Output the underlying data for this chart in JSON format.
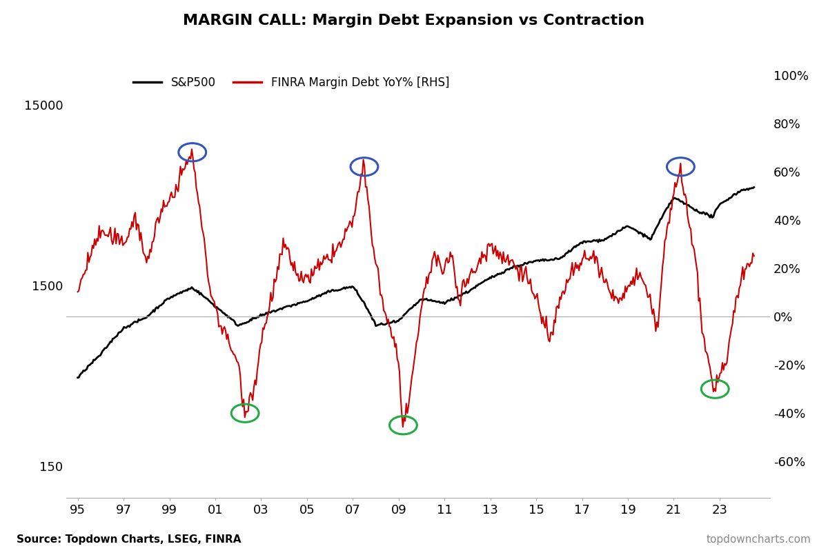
{
  "title": "MARGIN CALL: Margin Debt Expansion vs Contraction",
  "source_left": "Source: Topdown Charts, LSEG, FINRA",
  "source_right": "topdowncharts.com",
  "legend": [
    "S&P500",
    "FINRA Margin Debt YoY% [RHS]"
  ],
  "sp500_color": "#000000",
  "margin_color": "#cc0000",
  "background_color": "#ffffff",
  "left_yticks": [
    150,
    1500,
    15000
  ],
  "right_yticks": [
    -0.6,
    -0.4,
    -0.2,
    0.0,
    0.2,
    0.4,
    0.6,
    0.8,
    1.0
  ],
  "xtick_labels": [
    "95",
    "97",
    "99",
    "01",
    "03",
    "05",
    "07",
    "09",
    "11",
    "13",
    "15",
    "17",
    "19",
    "21",
    "23"
  ],
  "zero_line_color": "#aaaaaa",
  "sp500_key_x": [
    1995.0,
    1996.0,
    1997.0,
    1998.0,
    1999.0,
    2000.0,
    2001.0,
    2002.0,
    2003.0,
    2004.0,
    2005.0,
    2006.0,
    2007.0,
    2008.0,
    2009.0,
    2010.0,
    2011.0,
    2012.0,
    2013.0,
    2014.0,
    2015.0,
    2016.0,
    2017.0,
    2018.0,
    2019.0,
    2020.0,
    2020.4,
    2021.0,
    2022.0,
    2022.7,
    2023.0,
    2024.0,
    2024.5
  ],
  "sp500_key_y": [
    460,
    620,
    870,
    1000,
    1280,
    1460,
    1150,
    900,
    1020,
    1130,
    1230,
    1390,
    1480,
    900,
    950,
    1260,
    1200,
    1380,
    1650,
    1900,
    2050,
    2100,
    2600,
    2700,
    3200,
    2700,
    3400,
    4600,
    3900,
    3600,
    4200,
    5100,
    5200
  ],
  "margin_key_x": [
    1995.0,
    1995.5,
    1996.0,
    1997.0,
    1997.5,
    1998.0,
    1998.5,
    1999.0,
    1999.5,
    2000.0,
    2000.3,
    2000.8,
    2001.3,
    2001.8,
    2002.0,
    2002.3,
    2002.8,
    2003.0,
    2003.5,
    2004.0,
    2004.5,
    2005.0,
    2005.5,
    2006.0,
    2006.5,
    2007.0,
    2007.5,
    2007.8,
    2008.3,
    2008.8,
    2009.0,
    2009.2,
    2009.5,
    2009.8,
    2010.0,
    2010.5,
    2011.0,
    2011.3,
    2011.6,
    2012.0,
    2012.5,
    2013.0,
    2013.5,
    2014.0,
    2014.5,
    2015.0,
    2015.3,
    2015.6,
    2016.0,
    2016.5,
    2017.0,
    2017.5,
    2018.0,
    2018.5,
    2019.0,
    2019.5,
    2020.0,
    2020.3,
    2020.6,
    2021.0,
    2021.3,
    2021.6,
    2022.0,
    2022.3,
    2022.6,
    2022.8,
    2023.0,
    2023.3,
    2023.6,
    2024.0,
    2024.3,
    2024.5
  ],
  "margin_key_y": [
    0.1,
    0.25,
    0.35,
    0.3,
    0.42,
    0.22,
    0.4,
    0.48,
    0.58,
    0.68,
    0.45,
    0.1,
    -0.05,
    -0.15,
    -0.2,
    -0.4,
    -0.25,
    -0.1,
    0.1,
    0.3,
    0.18,
    0.15,
    0.2,
    0.25,
    0.3,
    0.4,
    0.62,
    0.35,
    0.05,
    -0.1,
    -0.2,
    -0.45,
    -0.35,
    -0.1,
    0.05,
    0.25,
    0.18,
    0.28,
    0.08,
    0.15,
    0.22,
    0.3,
    0.25,
    0.22,
    0.18,
    0.08,
    -0.02,
    -0.1,
    0.05,
    0.18,
    0.22,
    0.25,
    0.15,
    0.05,
    0.12,
    0.18,
    0.05,
    -0.05,
    0.3,
    0.5,
    0.62,
    0.42,
    0.2,
    -0.1,
    -0.25,
    -0.3,
    -0.25,
    -0.18,
    0.02,
    0.18,
    0.22,
    0.25
  ],
  "blue_circles": [
    [
      2000.0,
      0.68
    ],
    [
      2007.5,
      0.62
    ],
    [
      2021.3,
      0.62
    ]
  ],
  "green_circles": [
    [
      2002.3,
      -0.4
    ],
    [
      2009.2,
      -0.45
    ],
    [
      2022.8,
      -0.3
    ]
  ]
}
